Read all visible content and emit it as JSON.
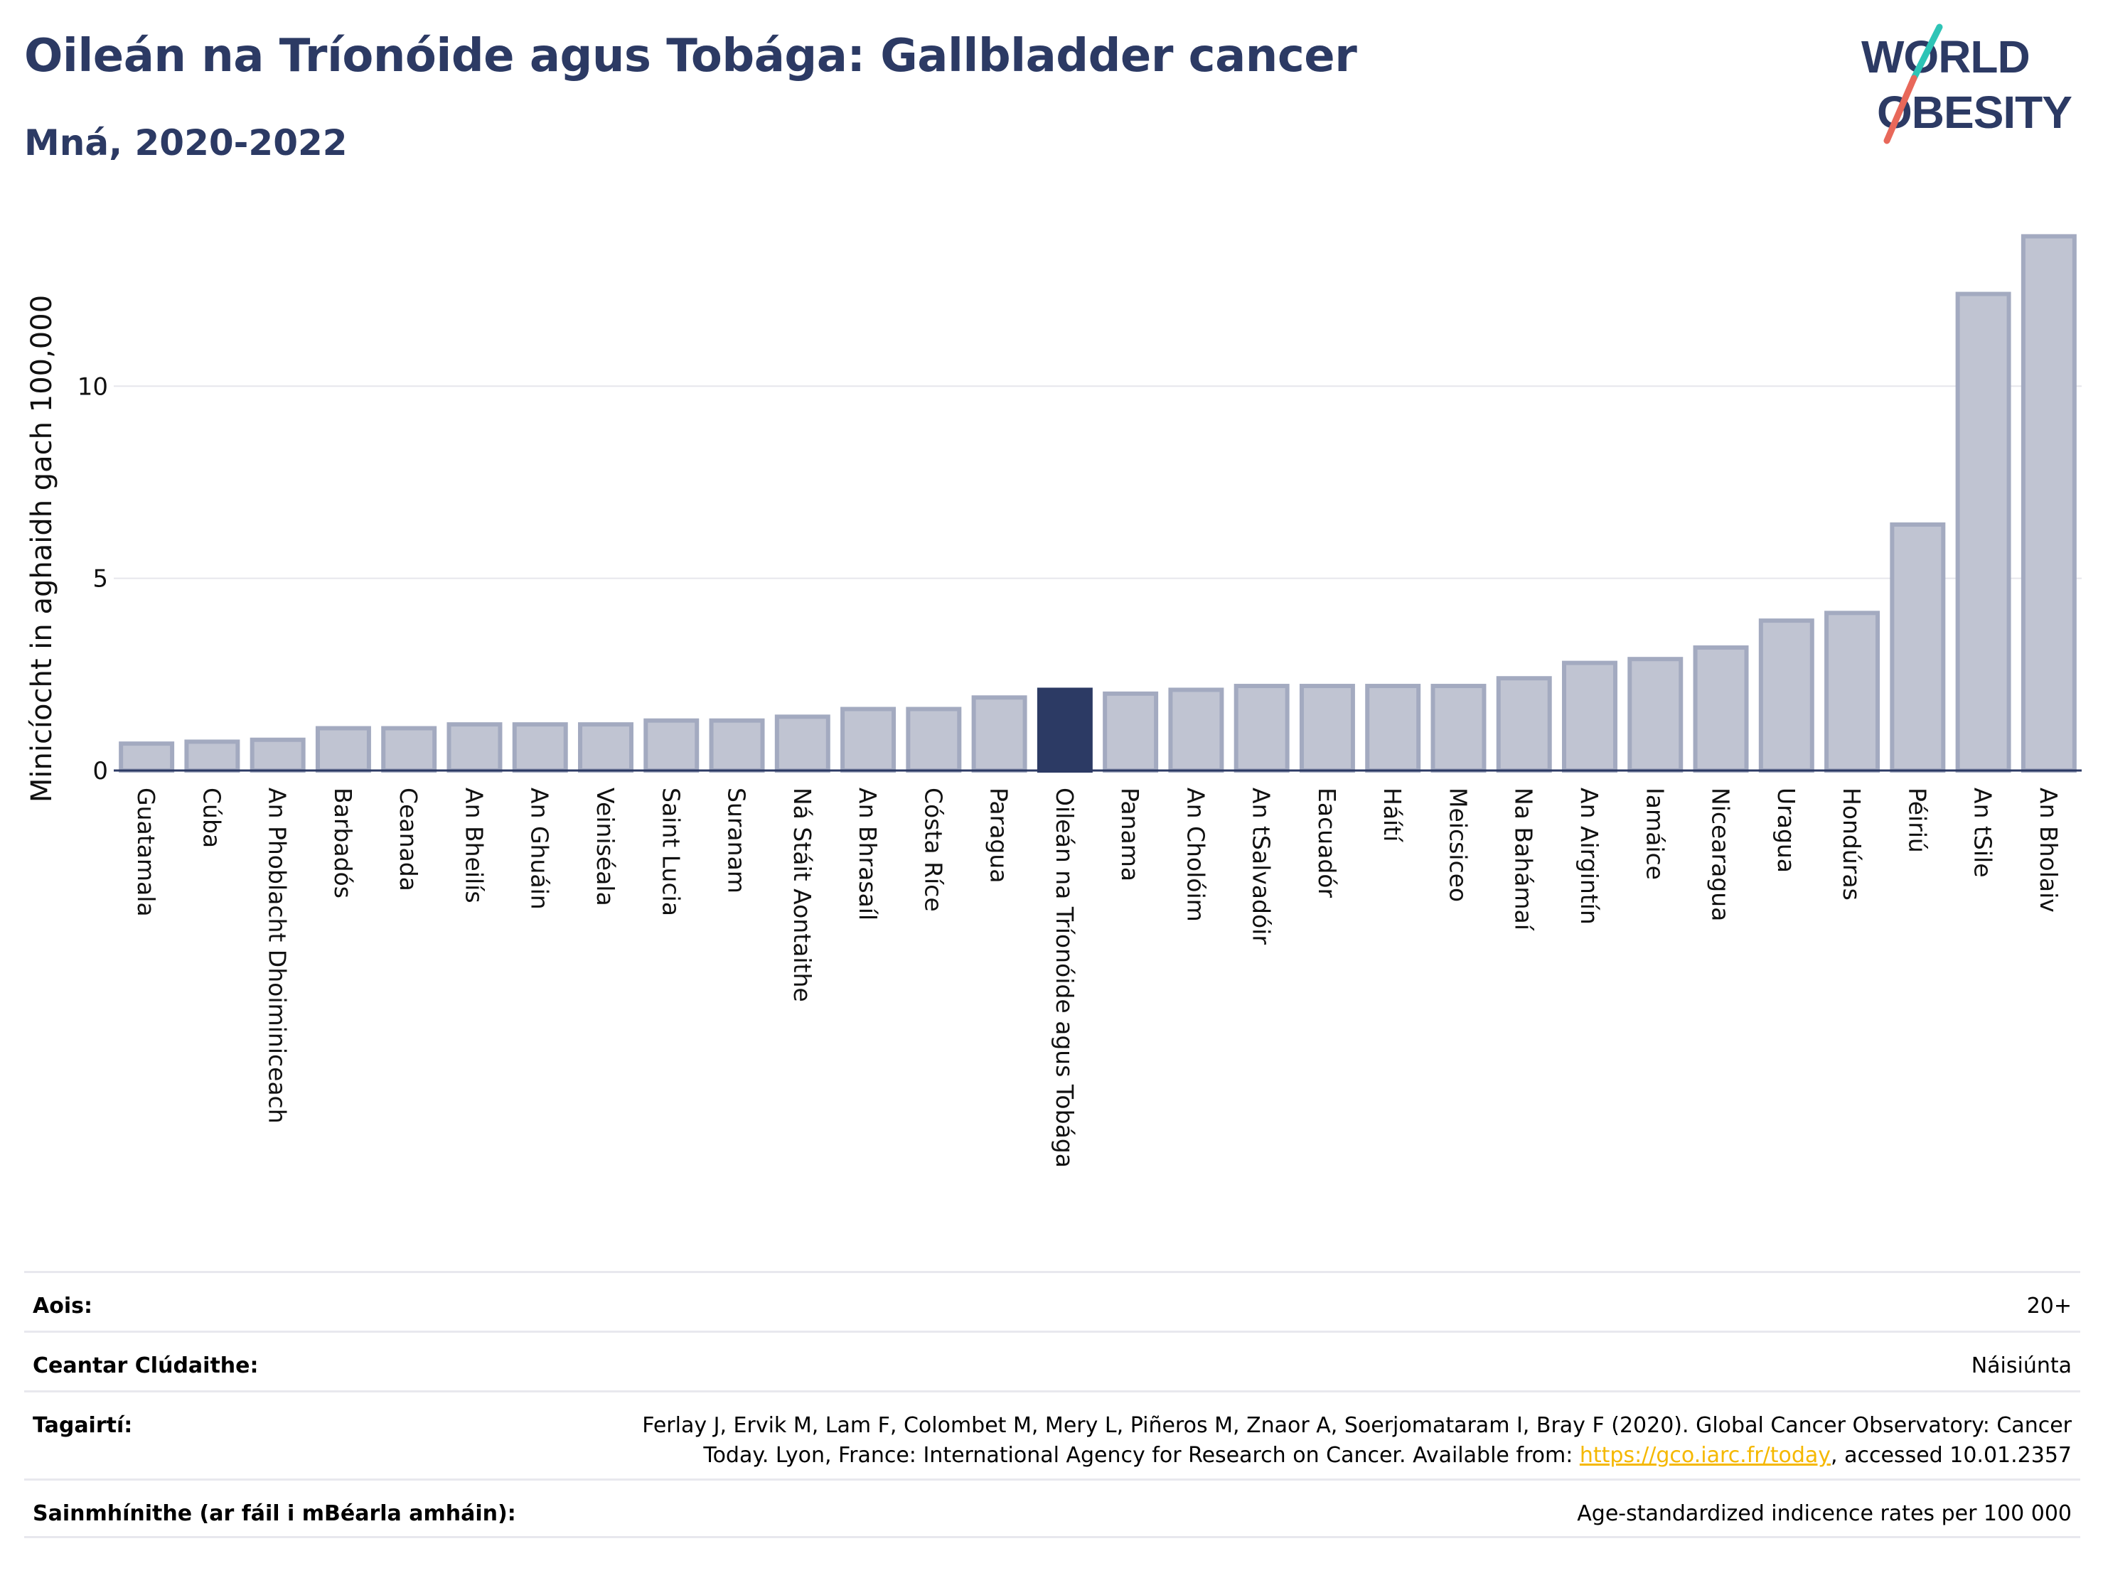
{
  "header": {
    "title": "Oileán na Tríonóide agus Tobága: Gallbladder cancer",
    "subtitle": "Mná, 2020-2022"
  },
  "logo": {
    "line1": "WORLD",
    "line2": "OBESITY",
    "colors": {
      "text": "#2c3a64",
      "slash_top": "#2ec4b6",
      "slash_bottom": "#e8685a"
    }
  },
  "chart_data": {
    "type": "bar",
    "ylabel": "Minicíocht in aghaidh gach 100,000",
    "ylim": [
      0,
      14.5
    ],
    "yticks": [
      0,
      5,
      10
    ],
    "grid": true,
    "highlight": "Oileán na Tríonóide agus Tobága",
    "colors": {
      "bar": "#c0c4d2",
      "bar_edge": "#a3aac0",
      "highlight": "#2c3a64",
      "axis": "#2c3a64"
    },
    "categories": [
      "Guatamala",
      "Cúba",
      "An Phoblacht Dhoiminiceach",
      "Barbadós",
      "Ceanada",
      "An Bheilís",
      "An Ghuáin",
      "Veiniséala",
      "Saint Lucia",
      "Suranam",
      "Ná Stáit Aontaithe",
      "An Bhrasaíl",
      "Cósta Ríce",
      "Paragua",
      "Oileán na Tríonóide agus Tobága",
      "Panama",
      "An Cholóim",
      "An tSalvadóir",
      "Eacuadór",
      "Háítí",
      "Meicsiceo",
      "Na Bahámaí",
      "An Airgintín",
      "Iamáice",
      "Nicearagua",
      "Uragua",
      "Hondúras",
      "Péiriú",
      "An tSile",
      "An Bholaiv"
    ],
    "values": [
      0.7,
      0.75,
      0.8,
      1.1,
      1.1,
      1.2,
      1.2,
      1.2,
      1.3,
      1.3,
      1.4,
      1.6,
      1.6,
      1.9,
      2.1,
      2.0,
      2.1,
      2.2,
      2.2,
      2.2,
      2.2,
      2.4,
      2.8,
      2.9,
      3.2,
      3.9,
      4.1,
      6.4,
      12.4,
      13.9
    ]
  },
  "meta": {
    "rows": [
      {
        "label": "Aois:",
        "value": "20+"
      },
      {
        "label": "Ceantar Clúdaithe:",
        "value": "Náisiúnta"
      },
      {
        "label": "Tagairtí:",
        "value_line1": "Ferlay J, Ervik M, Lam F, Colombet M, Mery L, Piñeros M, Znaor A, Soerjomataram I, Bray F (2020). Global Cancer Observatory: Cancer",
        "value_line2_pre": "Today. Lyon, France: International Agency for Research on Cancer. Available from: ",
        "link": "https://gco.iarc.fr/today",
        "value_line2_post": ", accessed 10.01.2357"
      },
      {
        "label": "Sainmhínithe (ar fáil i mBéarla amháin):",
        "value": "Age-standardized indicence rates per 100 000"
      }
    ]
  }
}
